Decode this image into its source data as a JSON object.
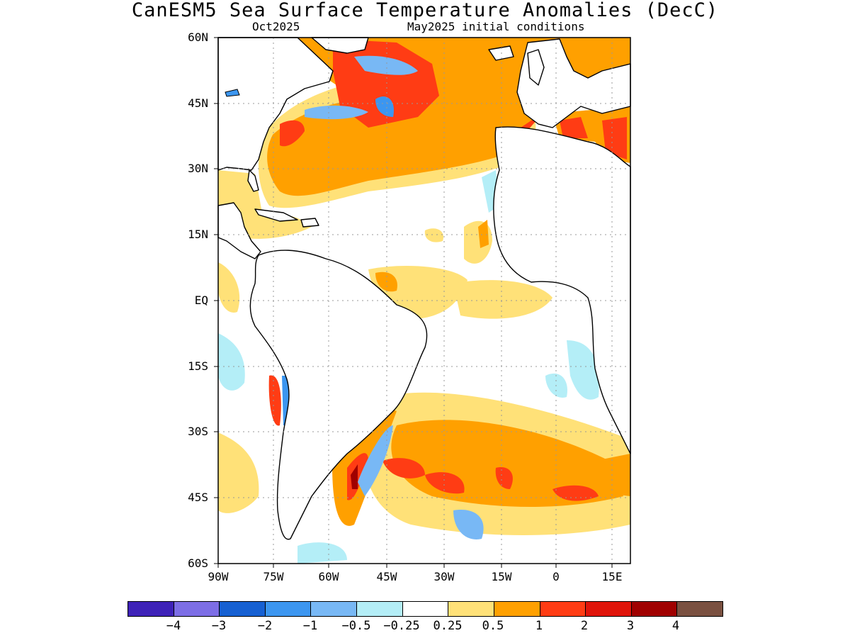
{
  "title": "CanESM5 Sea Surface Temperature Anomalies (DecC)",
  "subtitle_left": "Oct2025",
  "subtitle_right": "May2025 initial conditions",
  "lat_labels": [
    "60N",
    "45N",
    "30N",
    "15N",
    "EQ",
    "15S",
    "30S",
    "45S",
    "60S"
  ],
  "lon_labels": [
    "90W",
    "75W",
    "60W",
    "45W",
    "30W",
    "15W",
    "0",
    "15E"
  ],
  "colorbar": {
    "labels": [
      "−4",
      "−3",
      "−2",
      "−1",
      "−0.5",
      "−0.25",
      "0.25",
      "0.5",
      "1",
      "2",
      "3",
      "4"
    ],
    "colors": [
      "#3e22b8",
      "#7d6ee6",
      "#1660d2",
      "#3c96f0",
      "#78b8f5",
      "#b4eef7",
      "#ffffff",
      "#ffe178",
      "#ffa000",
      "#ff3c14",
      "#e0140a",
      "#a00000",
      "#7a5040"
    ]
  },
  "map_colors": {
    "warm_light": "#ffe178",
    "warm": "#ffa000",
    "warm_strong": "#ff3c14",
    "warm_extreme": "#a00000",
    "cool_light": "#b4eef7",
    "cool": "#78b8f5",
    "cool_strong": "#3c96f0"
  }
}
